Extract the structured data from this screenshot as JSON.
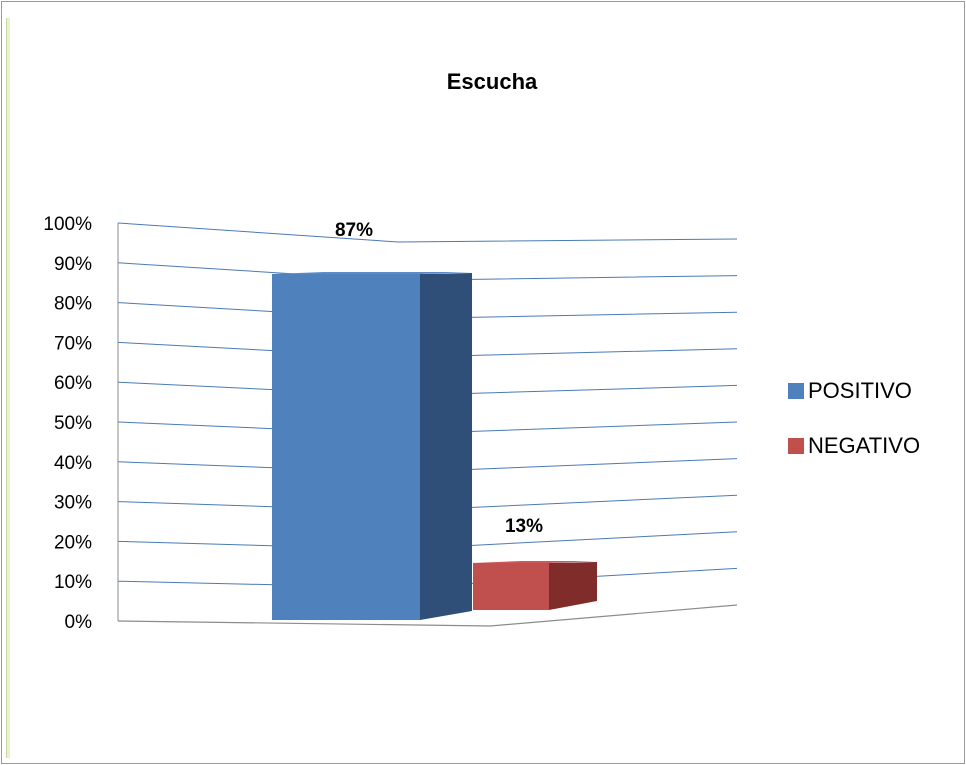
{
  "chart_data": {
    "type": "bar",
    "title": "Escucha",
    "categories": [
      "POSITIVO",
      "NEGATIVO"
    ],
    "values": [
      87,
      13
    ],
    "data_labels": [
      "87%",
      "13%"
    ],
    "ylim": [
      0,
      100
    ],
    "y_ticks": [
      "0%",
      "10%",
      "20%",
      "30%",
      "40%",
      "50%",
      "60%",
      "70%",
      "80%",
      "90%",
      "100%"
    ],
    "grid": true,
    "legend_placement": "right",
    "three_d": true,
    "colors": {
      "POSITIVO": {
        "front": "#4f81bd",
        "side": "#2f4f78",
        "top": "#5b8cc6"
      },
      "NEGATIVO": {
        "front": "#c0504d",
        "side": "#7f2c2a",
        "top": "#cc5a57"
      },
      "grid": "#4a7ab5",
      "floor": "#8c8c8c"
    },
    "legend": [
      {
        "label": "POSITIVO",
        "color": "#4f81bd"
      },
      {
        "label": "NEGATIVO",
        "color": "#c0504d"
      }
    ]
  }
}
